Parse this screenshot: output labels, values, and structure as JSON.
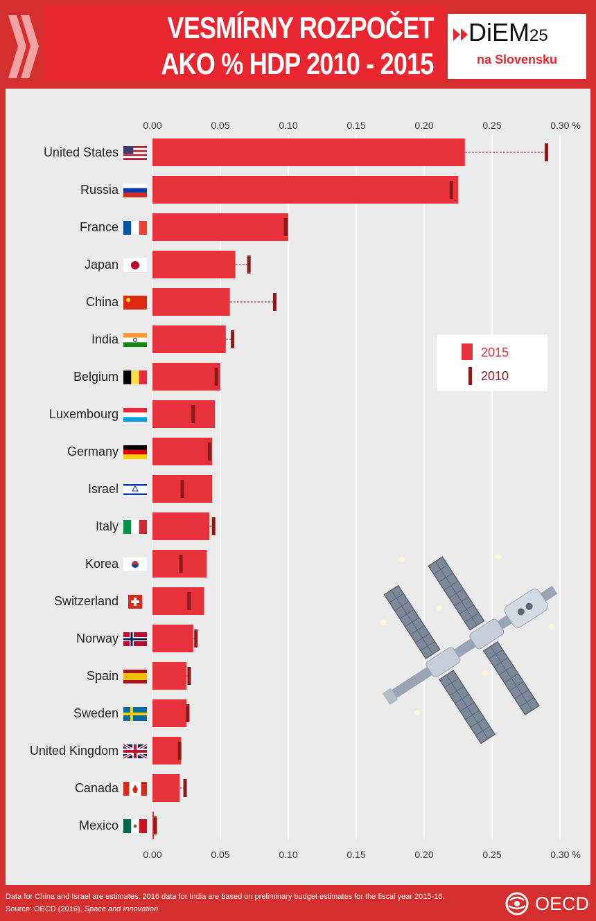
{
  "header": {
    "title_line1": "VESMÍRNY ROZPOČET",
    "title_line2": "AKO % HDP 2010 - 2015",
    "logo_main": "DiEM",
    "logo_main_num": "25",
    "logo_sub": "na Slovensku"
  },
  "footer": {
    "note": "Data for China and Israel are estimates. 2016 data for India are based on preliminary budget estimates for the fiscal year 2015-16.",
    "source_prefix": "Source: OECD (2016), ",
    "source_title": "Space and Innovation",
    "oecd": "OECD"
  },
  "colors": {
    "bar_2015": "#e8323b",
    "marker_2010": "#8b1a1a",
    "panel": "#ebebeb",
    "frame": "#d32f2f"
  },
  "chart_data": {
    "type": "bar",
    "orientation": "horizontal",
    "categories": [
      "United States",
      "Russia",
      "France",
      "Japan",
      "China",
      "India",
      "Belgium",
      "Luxembourg",
      "Germany",
      "Israel",
      "Italy",
      "Korea",
      "Switzerland",
      "Norway",
      "Spain",
      "Sweden",
      "United Kingdom",
      "Canada",
      "Mexico"
    ],
    "flags": [
      "us-flag-icon",
      "russia-flag-icon",
      "france-flag-icon",
      "japan-flag-icon",
      "china-flag-icon",
      "india-flag-icon",
      "belgium-flag-icon",
      "luxembourg-flag-icon",
      "germany-flag-icon",
      "israel-flag-icon",
      "italy-flag-icon",
      "korea-flag-icon",
      "switzerland-flag-icon",
      "norway-flag-icon",
      "spain-flag-icon",
      "sweden-flag-icon",
      "uk-flag-icon",
      "canada-flag-icon",
      "mexico-flag-icon"
    ],
    "series": [
      {
        "name": "2015",
        "values": [
          0.23,
          0.225,
          0.1,
          0.061,
          0.057,
          0.054,
          0.05,
          0.046,
          0.044,
          0.044,
          0.042,
          0.04,
          0.038,
          0.03,
          0.025,
          0.025,
          0.021,
          0.02,
          0.001
        ]
      },
      {
        "name": "2010",
        "values": [
          0.29,
          0.22,
          0.098,
          0.071,
          0.09,
          0.059,
          0.047,
          0.03,
          0.042,
          0.022,
          0.045,
          0.021,
          0.027,
          0.032,
          0.027,
          0.026,
          0.02,
          0.024,
          0.002
        ]
      }
    ],
    "ticks": [
      "0.00",
      "0.05",
      "0.10",
      "0.15",
      "0.20",
      "0.25",
      "0.30 %"
    ],
    "xlim": [
      0,
      0.3
    ],
    "legend_position": "middle-right",
    "grid": true,
    "title": "",
    "xlabel": "",
    "ylabel": ""
  }
}
